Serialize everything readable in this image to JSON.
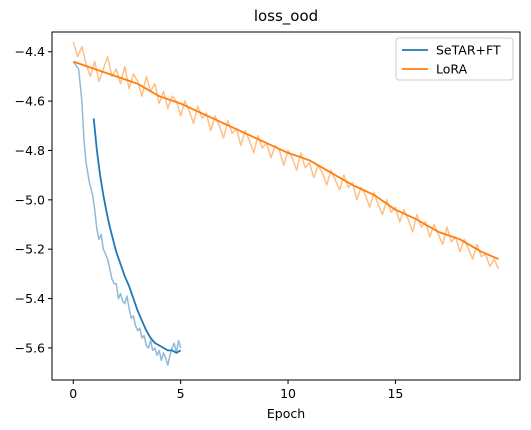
{
  "chart_data": {
    "type": "line",
    "title": "loss_ood",
    "xlabel": "Epoch",
    "ylabel": "",
    "xlim": [
      -0.99,
      20.8
    ],
    "ylim": [
      -5.73,
      -4.32
    ],
    "xticks": [
      0,
      5,
      10,
      15
    ],
    "yticks": [
      -4.4,
      -4.6,
      -4.8,
      -5.0,
      -5.2,
      -5.4,
      -5.6
    ],
    "ytick_labels": [
      "−4.4",
      "−4.6",
      "−4.8",
      "−5.0",
      "−5.2",
      "−5.4",
      "−5.6"
    ],
    "grid": false,
    "legend_position": "top-right",
    "series": [
      {
        "name": "SeTAR+FT",
        "color": "#1f77b4",
        "raw": {
          "x": [
            0.0,
            0.25,
            0.4,
            0.5,
            0.6,
            0.75,
            0.9,
            1.0,
            1.1,
            1.2,
            1.3,
            1.4,
            1.5,
            1.6,
            1.7,
            1.8,
            1.9,
            2.0,
            2.1,
            2.2,
            2.3,
            2.4,
            2.5,
            2.6,
            2.7,
            2.8,
            2.9,
            3.0,
            3.1,
            3.2,
            3.3,
            3.4,
            3.5,
            3.6,
            3.7,
            3.8,
            3.9,
            4.0,
            4.1,
            4.2,
            4.3,
            4.4,
            4.5,
            4.6,
            4.7,
            4.8,
            4.9,
            5.0
          ],
          "y": [
            -4.44,
            -4.47,
            -4.6,
            -4.76,
            -4.85,
            -4.93,
            -4.98,
            -5.04,
            -5.12,
            -5.16,
            -5.14,
            -5.2,
            -5.22,
            -5.24,
            -5.28,
            -5.32,
            -5.34,
            -5.34,
            -5.4,
            -5.38,
            -5.41,
            -5.42,
            -5.39,
            -5.44,
            -5.48,
            -5.47,
            -5.51,
            -5.53,
            -5.52,
            -5.56,
            -5.55,
            -5.59,
            -5.6,
            -5.57,
            -5.61,
            -5.6,
            -5.63,
            -5.61,
            -5.65,
            -5.62,
            -5.64,
            -5.67,
            -5.63,
            -5.6,
            -5.58,
            -5.62,
            -5.57,
            -5.6
          ]
        },
        "smoothed": {
          "x": [
            0.95,
            1.1,
            1.25,
            1.4,
            1.55,
            1.7,
            1.85,
            2.0,
            2.2,
            2.4,
            2.6,
            2.8,
            3.0,
            3.2,
            3.4,
            3.6,
            3.8,
            4.0,
            4.2,
            4.4,
            4.6,
            4.8,
            5.0
          ],
          "y": [
            -4.67,
            -4.8,
            -4.9,
            -4.98,
            -5.05,
            -5.11,
            -5.16,
            -5.21,
            -5.26,
            -5.31,
            -5.35,
            -5.4,
            -5.45,
            -5.49,
            -5.53,
            -5.56,
            -5.58,
            -5.59,
            -5.6,
            -5.61,
            -5.61,
            -5.62,
            -5.61
          ]
        }
      },
      {
        "name": "LoRA",
        "color": "#ff7f0e",
        "raw": {
          "x": [
            0.0,
            0.2,
            0.4,
            0.6,
            0.8,
            1.0,
            1.2,
            1.4,
            1.6,
            1.8,
            2.0,
            2.2,
            2.4,
            2.6,
            2.8,
            3.0,
            3.2,
            3.4,
            3.6,
            3.8,
            4.0,
            4.2,
            4.4,
            4.6,
            4.8,
            5.0,
            5.2,
            5.4,
            5.6,
            5.8,
            6.0,
            6.2,
            6.4,
            6.6,
            6.8,
            7.0,
            7.2,
            7.4,
            7.6,
            7.8,
            8.0,
            8.2,
            8.4,
            8.6,
            8.8,
            9.0,
            9.2,
            9.4,
            9.6,
            9.8,
            10.0,
            10.2,
            10.4,
            10.6,
            10.8,
            11.0,
            11.2,
            11.4,
            11.6,
            11.8,
            12.0,
            12.2,
            12.4,
            12.6,
            12.8,
            13.0,
            13.2,
            13.4,
            13.6,
            13.8,
            14.0,
            14.2,
            14.4,
            14.6,
            14.8,
            15.0,
            15.2,
            15.4,
            15.6,
            15.8,
            16.0,
            16.2,
            16.4,
            16.6,
            16.8,
            17.0,
            17.2,
            17.4,
            17.6,
            17.8,
            18.0,
            18.2,
            18.4,
            18.6,
            18.8,
            19.0,
            19.2,
            19.4,
            19.6,
            19.8
          ],
          "y": [
            -4.36,
            -4.42,
            -4.38,
            -4.45,
            -4.5,
            -4.44,
            -4.52,
            -4.47,
            -4.42,
            -4.5,
            -4.47,
            -4.53,
            -4.46,
            -4.55,
            -4.49,
            -4.52,
            -4.58,
            -4.5,
            -4.56,
            -4.53,
            -4.61,
            -4.56,
            -4.63,
            -4.58,
            -4.6,
            -4.66,
            -4.6,
            -4.64,
            -4.69,
            -4.62,
            -4.67,
            -4.65,
            -4.72,
            -4.66,
            -4.7,
            -4.75,
            -4.68,
            -4.73,
            -4.71,
            -4.78,
            -4.72,
            -4.76,
            -4.81,
            -4.74,
            -4.79,
            -4.77,
            -4.83,
            -4.78,
            -4.8,
            -4.86,
            -4.8,
            -4.83,
            -4.88,
            -4.81,
            -4.87,
            -4.85,
            -4.91,
            -4.86,
            -4.89,
            -4.94,
            -4.88,
            -4.92,
            -4.96,
            -4.9,
            -4.95,
            -4.93,
            -5.0,
            -4.95,
            -4.98,
            -5.03,
            -4.97,
            -5.02,
            -5.06,
            -5.0,
            -5.05,
            -5.03,
            -5.09,
            -5.04,
            -5.08,
            -5.13,
            -5.06,
            -5.11,
            -5.09,
            -5.15,
            -5.1,
            -5.14,
            -5.18,
            -5.11,
            -5.17,
            -5.15,
            -5.21,
            -5.16,
            -5.2,
            -5.24,
            -5.18,
            -5.23,
            -5.22,
            -5.27,
            -5.24,
            -5.28
          ]
        },
        "smoothed": {
          "x": [
            0.0,
            1.0,
            2.0,
            3.0,
            4.0,
            5.0,
            6.0,
            7.0,
            8.0,
            9.0,
            10.0,
            11.0,
            12.0,
            13.0,
            14.0,
            15.0,
            16.0,
            17.0,
            18.0,
            19.0,
            19.8
          ],
          "y": [
            -4.44,
            -4.47,
            -4.5,
            -4.53,
            -4.58,
            -4.61,
            -4.65,
            -4.69,
            -4.73,
            -4.77,
            -4.81,
            -4.84,
            -4.89,
            -4.94,
            -4.98,
            -5.04,
            -5.08,
            -5.13,
            -5.16,
            -5.21,
            -5.24
          ]
        }
      }
    ]
  }
}
